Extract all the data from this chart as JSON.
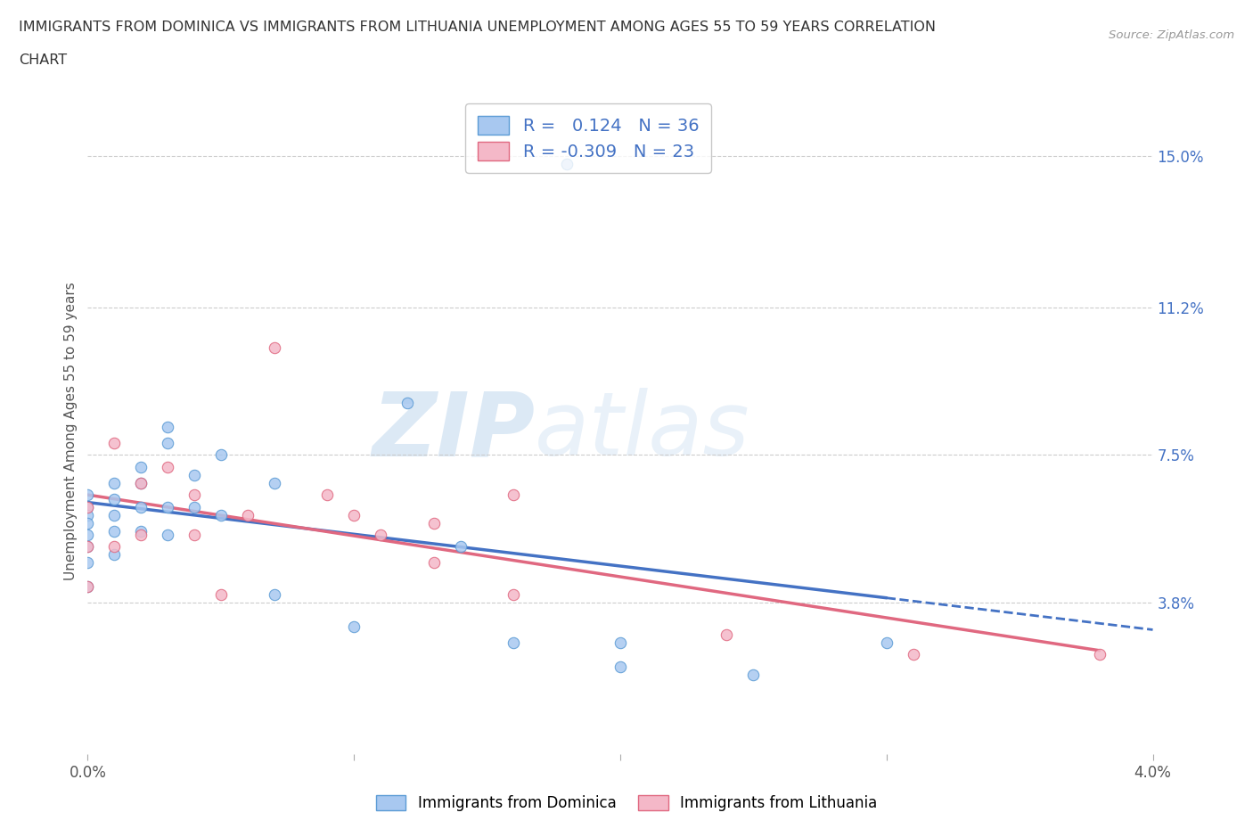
{
  "title_line1": "IMMIGRANTS FROM DOMINICA VS IMMIGRANTS FROM LITHUANIA UNEMPLOYMENT AMONG AGES 55 TO 59 YEARS CORRELATION",
  "title_line2": "CHART",
  "source": "Source: ZipAtlas.com",
  "ylabel": "Unemployment Among Ages 55 to 59 years",
  "xlim": [
    0.0,
    0.04
  ],
  "ylim": [
    0.0,
    0.162
  ],
  "ytick_labels_right": [
    "3.8%",
    "7.5%",
    "11.2%",
    "15.0%"
  ],
  "ytick_values_right": [
    0.038,
    0.075,
    0.112,
    0.15
  ],
  "color_dominica": "#a8c8f0",
  "color_dominica_edge": "#5b9bd5",
  "color_lithuania": "#f4b8c8",
  "color_lithuania_edge": "#e06880",
  "color_dominica_line": "#4472c4",
  "color_lithuania_line": "#e06880",
  "legend_r_dominica": "0.124",
  "legend_n_dominica": "36",
  "legend_r_lithuania": "-0.309",
  "legend_n_lithuania": "23",
  "watermark_zip": "ZIP",
  "watermark_atlas": "atlas",
  "dominica_x": [
    0.0,
    0.0,
    0.0,
    0.0,
    0.0,
    0.0,
    0.0,
    0.0,
    0.001,
    0.001,
    0.001,
    0.001,
    0.001,
    0.002,
    0.002,
    0.002,
    0.002,
    0.003,
    0.003,
    0.003,
    0.003,
    0.004,
    0.004,
    0.005,
    0.005,
    0.007,
    0.007,
    0.01,
    0.012,
    0.014,
    0.016,
    0.018,
    0.02,
    0.02,
    0.025,
    0.03
  ],
  "dominica_y": [
    0.065,
    0.062,
    0.06,
    0.058,
    0.055,
    0.052,
    0.048,
    0.042,
    0.068,
    0.064,
    0.06,
    0.056,
    0.05,
    0.072,
    0.068,
    0.062,
    0.056,
    0.082,
    0.078,
    0.062,
    0.055,
    0.07,
    0.062,
    0.075,
    0.06,
    0.068,
    0.04,
    0.032,
    0.088,
    0.052,
    0.028,
    0.148,
    0.028,
    0.022,
    0.02,
    0.028
  ],
  "lithuania_x": [
    0.0,
    0.0,
    0.0,
    0.001,
    0.001,
    0.002,
    0.002,
    0.003,
    0.004,
    0.004,
    0.005,
    0.006,
    0.007,
    0.009,
    0.01,
    0.011,
    0.013,
    0.013,
    0.016,
    0.016,
    0.024,
    0.031,
    0.038
  ],
  "lithuania_y": [
    0.062,
    0.052,
    0.042,
    0.078,
    0.052,
    0.068,
    0.055,
    0.072,
    0.065,
    0.055,
    0.04,
    0.06,
    0.102,
    0.065,
    0.06,
    0.055,
    0.058,
    0.048,
    0.065,
    0.04,
    0.03,
    0.025,
    0.025
  ],
  "background_color": "#ffffff",
  "grid_color": "#cccccc"
}
